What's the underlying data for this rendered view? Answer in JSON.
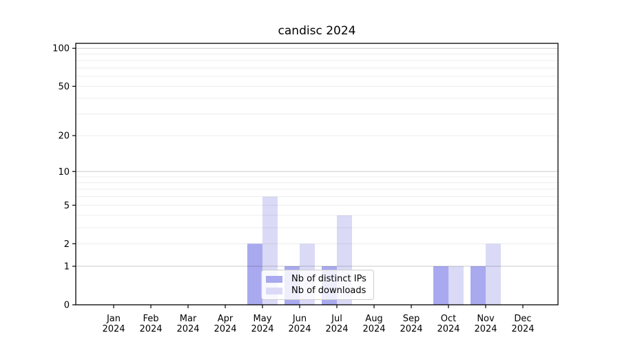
{
  "chart_data": {
    "type": "bar",
    "title": "candisc 2024",
    "months": [
      "Jan",
      "Feb",
      "Mar",
      "Apr",
      "May",
      "Jun",
      "Jul",
      "Aug",
      "Sep",
      "Oct",
      "Nov",
      "Dec"
    ],
    "year": "2024",
    "series": [
      {
        "name": "Nb of distinct IPs",
        "color": "#a9a9ef",
        "values": [
          0,
          0,
          0,
          0,
          2,
          1,
          1,
          0,
          0,
          1,
          1,
          0
        ]
      },
      {
        "name": "Nb of downloads",
        "color": "#dadaf7",
        "values": [
          0,
          0,
          0,
          0,
          6,
          2,
          4,
          0,
          0,
          1,
          2,
          0
        ]
      }
    ],
    "y_axis": {
      "scale": "log1p",
      "tick_values": [
        0,
        1,
        2,
        5,
        10,
        20,
        50,
        100
      ],
      "major_gridlines": [
        1,
        10,
        100
      ],
      "minor_gridlines": [
        2,
        3,
        4,
        5,
        6,
        7,
        8,
        9,
        20,
        30,
        40,
        50,
        60,
        70,
        80,
        90
      ],
      "ylim_top": 110
    },
    "legend": {
      "position": "lower-center"
    }
  },
  "colors": {
    "axis": "#000000",
    "tick_text": "#000000",
    "major_grid": "rgba(0,0,0,0.21)",
    "minor_grid": "rgba(0,0,0,0.075)",
    "background": "#ffffff"
  }
}
